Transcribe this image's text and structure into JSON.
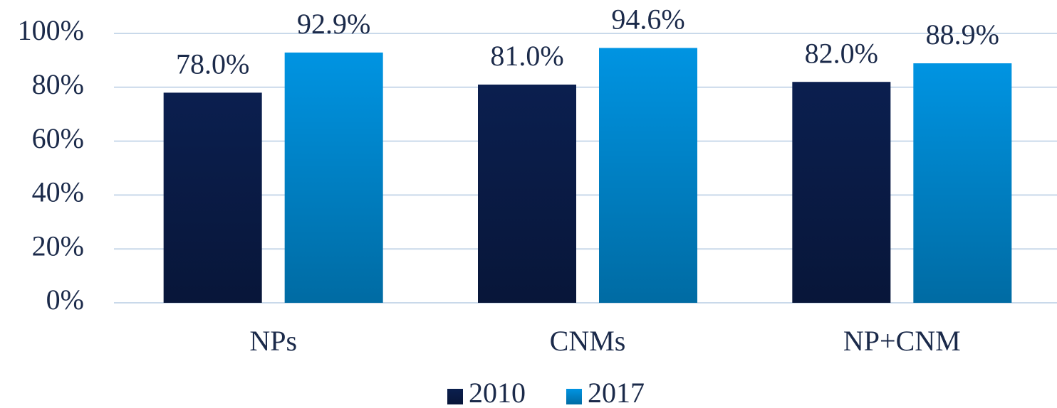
{
  "chart_data": {
    "type": "bar",
    "categories": [
      "NPs",
      "CNMs",
      "NP+CNM"
    ],
    "series": [
      {
        "name": "2010",
        "color": "#0b1f4f",
        "values": [
          78.0,
          81.0,
          82.0
        ],
        "value_labels": [
          "78.0%",
          "81.0%",
          "82.0%"
        ]
      },
      {
        "name": "2017",
        "color": "#0094e2",
        "values": [
          92.9,
          94.6,
          88.9
        ],
        "value_labels": [
          "92.9%",
          "94.6%",
          "88.9%"
        ]
      }
    ],
    "ylim": [
      0,
      100
    ],
    "yticks": [
      {
        "value": 0,
        "label": "0%"
      },
      {
        "value": 20,
        "label": "20%"
      },
      {
        "value": 40,
        "label": "40%"
      },
      {
        "value": 60,
        "label": "60%"
      },
      {
        "value": 80,
        "label": "80%"
      },
      {
        "value": 100,
        "label": "100%"
      }
    ],
    "grid": true,
    "legend": "bottom"
  }
}
